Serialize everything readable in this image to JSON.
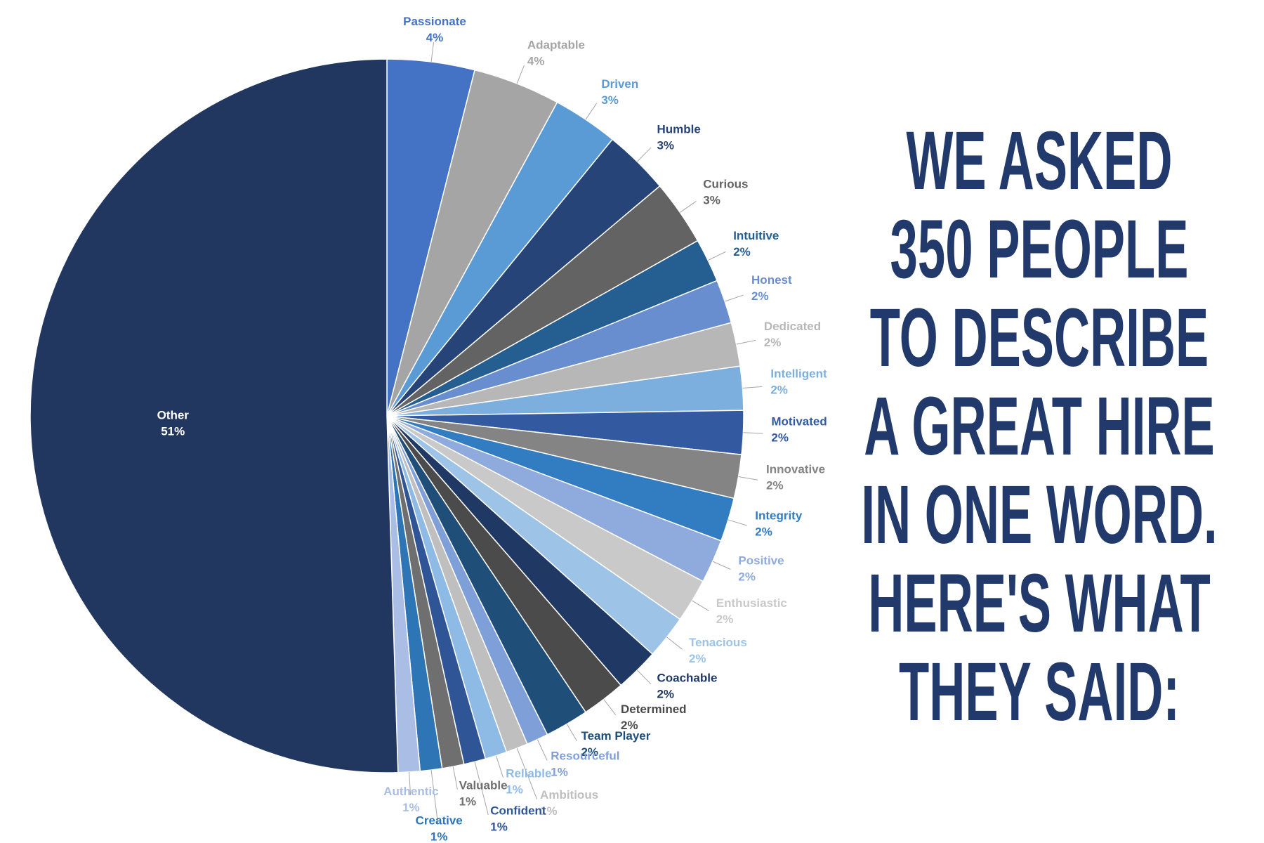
{
  "chart_data": {
    "type": "pie",
    "title": [
      "WE ASKED",
      "350 PEOPLE",
      "TO DESCRIBE",
      "A GREAT HIRE",
      "IN ONE WORD.",
      "HERE'S WHAT",
      "THEY SAID:"
    ],
    "categories": [
      "Passionate",
      "Adaptable",
      "Driven",
      "Humble",
      "Curious",
      "Intuitive",
      "Honest",
      "Dedicated",
      "Intelligent",
      "Motivated",
      "Innovative",
      "Integrity",
      "Positive",
      "Enthusiastic",
      "Tenacious",
      "Coachable",
      "Determined",
      "Team Player",
      "Resourceful",
      "Ambitious",
      "Reliable",
      "Confident",
      "Valuable",
      "Creative",
      "Authentic",
      "Other"
    ],
    "values": [
      4,
      4,
      3,
      3,
      3,
      2,
      2,
      2,
      2,
      2,
      2,
      2,
      2,
      2,
      2,
      2,
      2,
      2,
      1,
      1,
      1,
      1,
      1,
      1,
      1,
      51
    ],
    "value_labels": [
      "4%",
      "4%",
      "3%",
      "3%",
      "3%",
      "2%",
      "2%",
      "2%",
      "2%",
      "2%",
      "2%",
      "2%",
      "2%",
      "2%",
      "2%",
      "2%",
      "2%",
      "2%",
      "1%",
      "1%",
      "1%",
      "1%",
      "1%",
      "1%",
      "1%",
      "51%"
    ],
    "colors": [
      "#4472c4",
      "#a5a5a5",
      "#5b9bd5",
      "#264478",
      "#636363",
      "#255e91",
      "#698ed0",
      "#b7b7b7",
      "#7cafdd",
      "#335aa1",
      "#848484",
      "#327dc2",
      "#8faadc",
      "#c9c9c9",
      "#9dc3e6",
      "#203864",
      "#4b4b4b",
      "#1f4e79",
      "#7f9fd9",
      "#bfbfbf",
      "#8ebbe6",
      "#2f5597",
      "#6f6f6f",
      "#2e75b6",
      "#a9bde5",
      "#21375f"
    ]
  }
}
